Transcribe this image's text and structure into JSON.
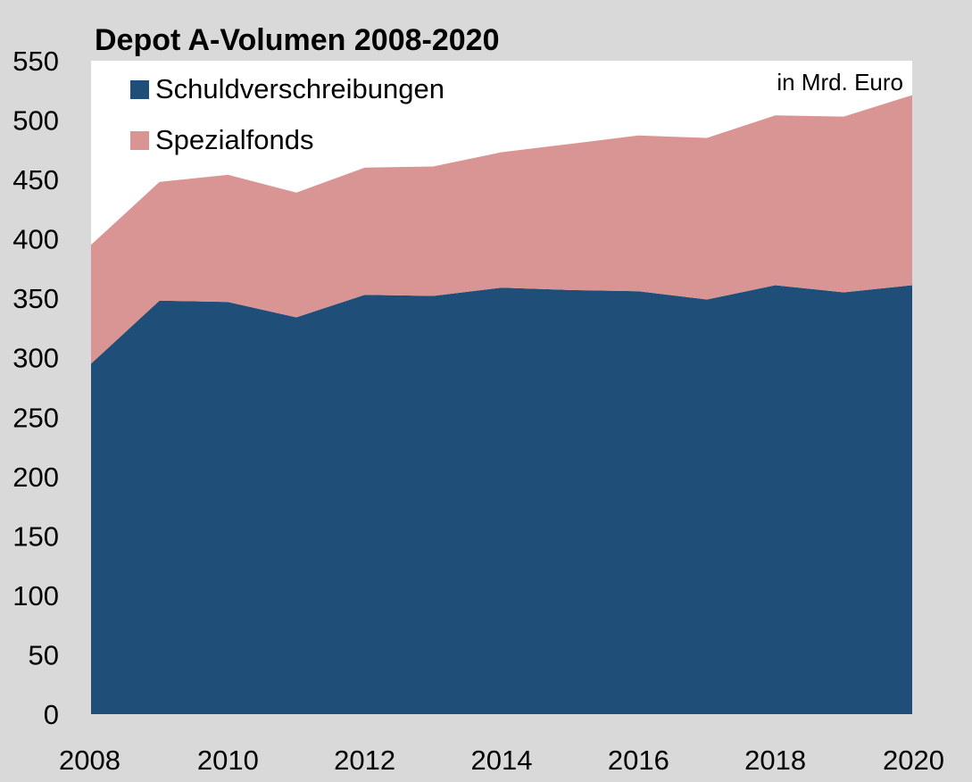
{
  "chart_data": {
    "type": "area",
    "stacked": true,
    "title": "Depot A-Volumen 2008-2020",
    "unit_note": "in Mrd. Euro",
    "x": [
      2008,
      2009,
      2010,
      2011,
      2012,
      2013,
      2014,
      2015,
      2016,
      2017,
      2018,
      2019,
      2020
    ],
    "x_tick_labels": [
      "2008",
      "2010",
      "2012",
      "2014",
      "2016",
      "2018",
      "2020"
    ],
    "y_tick_labels": [
      "0",
      "50",
      "100",
      "150",
      "200",
      "250",
      "300",
      "350",
      "400",
      "450",
      "500",
      "550"
    ],
    "ylim": [
      0,
      550
    ],
    "xlim": [
      2008,
      2020
    ],
    "legend_position": "top-left",
    "series": [
      {
        "name": "Schuldverschreibungen",
        "color": "#1f4e79",
        "values": [
          295,
          348,
          347,
          334,
          353,
          352,
          359,
          357,
          356,
          349,
          361,
          355,
          361
        ]
      },
      {
        "name": "Spezialfonds",
        "color": "#d99594",
        "values": [
          100,
          100,
          107,
          105,
          107,
          109,
          114,
          123,
          131,
          136,
          143,
          148,
          160
        ]
      }
    ],
    "plot_background": "#ffffff",
    "page_background": "#d9d9d9"
  }
}
